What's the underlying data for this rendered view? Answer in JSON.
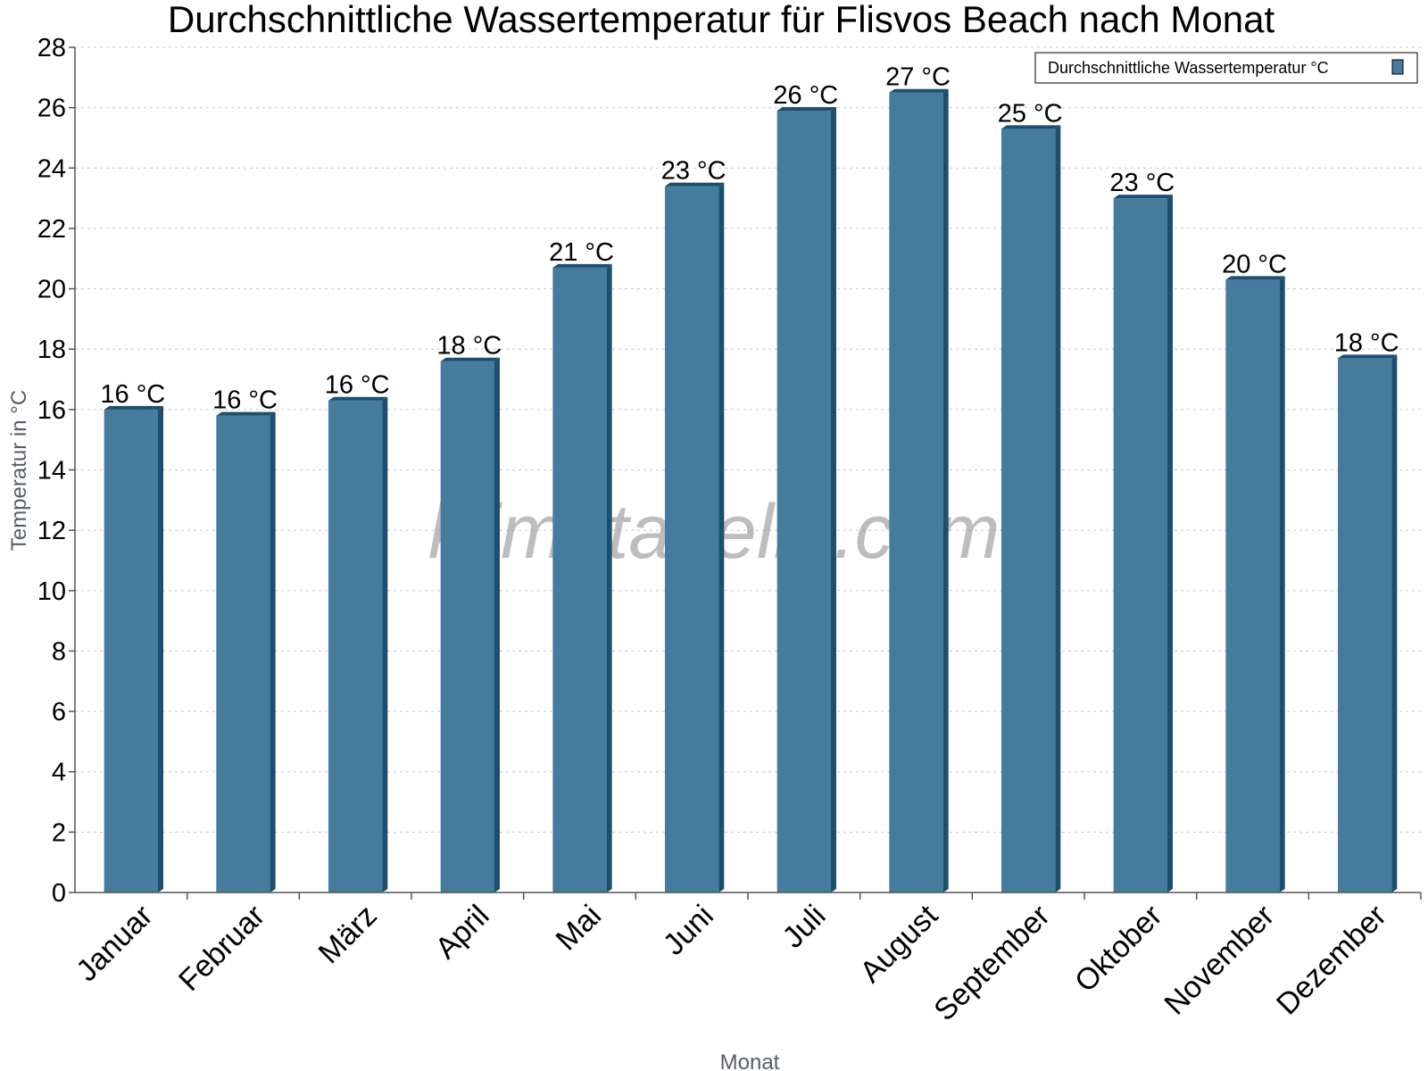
{
  "chart_data": {
    "type": "bar",
    "title": "Durchschnittliche Wassertemperatur für Flisvos Beach nach Monat",
    "xlabel": "Monat",
    "ylabel": "Temperatur in °C",
    "categories": [
      "Januar",
      "Februar",
      "März",
      "April",
      "Mai",
      "Juni",
      "Juli",
      "August",
      "September",
      "Oktober",
      "November",
      "Dezember"
    ],
    "series": [
      {
        "name": "Durchschnittliche Wassertemperatur °C",
        "values": [
          16.0,
          15.8,
          16.3,
          17.6,
          20.7,
          23.4,
          25.9,
          26.5,
          25.3,
          23.0,
          20.3,
          17.7
        ],
        "labels": [
          "16 °C",
          "16 °C",
          "16 °C",
          "18 °C",
          "21 °C",
          "23 °C",
          "26 °C",
          "27 °C",
          "25 °C",
          "23 °C",
          "20 °C",
          "18 °C"
        ],
        "color": "#457b9d"
      }
    ],
    "ylim": [
      0,
      28
    ],
    "yticks": [
      0,
      2,
      4,
      6,
      8,
      10,
      12,
      14,
      16,
      18,
      20,
      22,
      24,
      26,
      28
    ],
    "grid": true,
    "legend_position": "top-right"
  },
  "watermark": "klimatabelle.com",
  "colors": {
    "bar": "#457b9d",
    "bar_shadow": "#1d4e6e",
    "grid": "#c8c8c8",
    "axis": "#555555"
  }
}
